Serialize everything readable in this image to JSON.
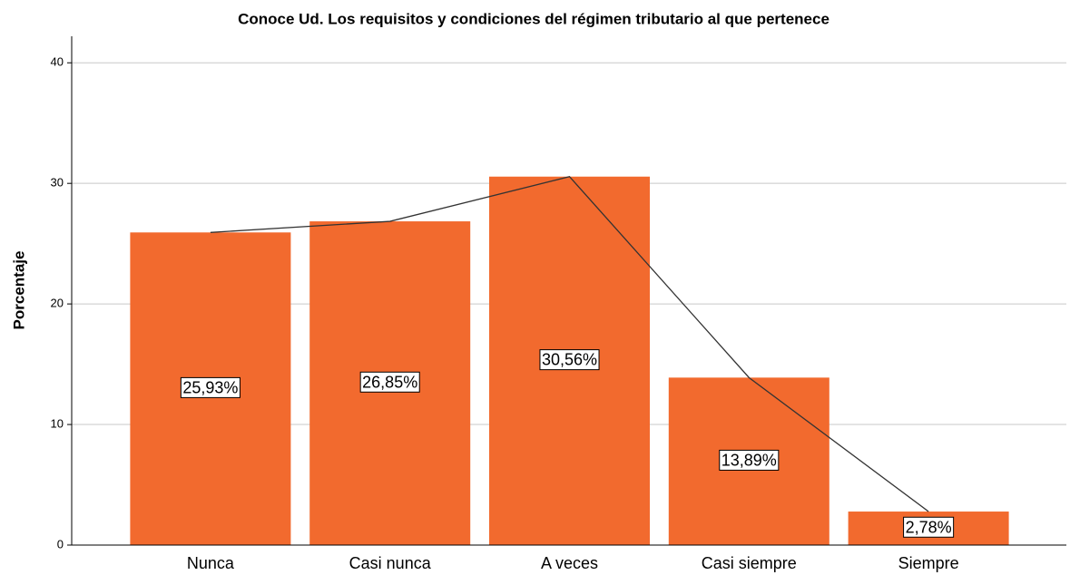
{
  "chart_data": {
    "type": "bar",
    "title": "Conoce Ud. Los requisitos y condiciones del régimen tributario al que pertenece",
    "y_label": "Porcentaje",
    "categories": [
      "Nunca",
      "Casi nunca",
      "A veces",
      "Casi siempre",
      "Siempre"
    ],
    "values": [
      25.93,
      26.85,
      30.56,
      13.89,
      2.78
    ],
    "value_labels": [
      "25,93%",
      "26,85%",
      "30,56%",
      "13,89%",
      "2,78%"
    ],
    "color": "#f26a2e",
    "line_overlay": true,
    "line_color": "#333333",
    "ylim": [
      0,
      42.2
    ],
    "yticks": [
      0,
      10,
      20,
      30,
      40
    ],
    "grid": true
  }
}
